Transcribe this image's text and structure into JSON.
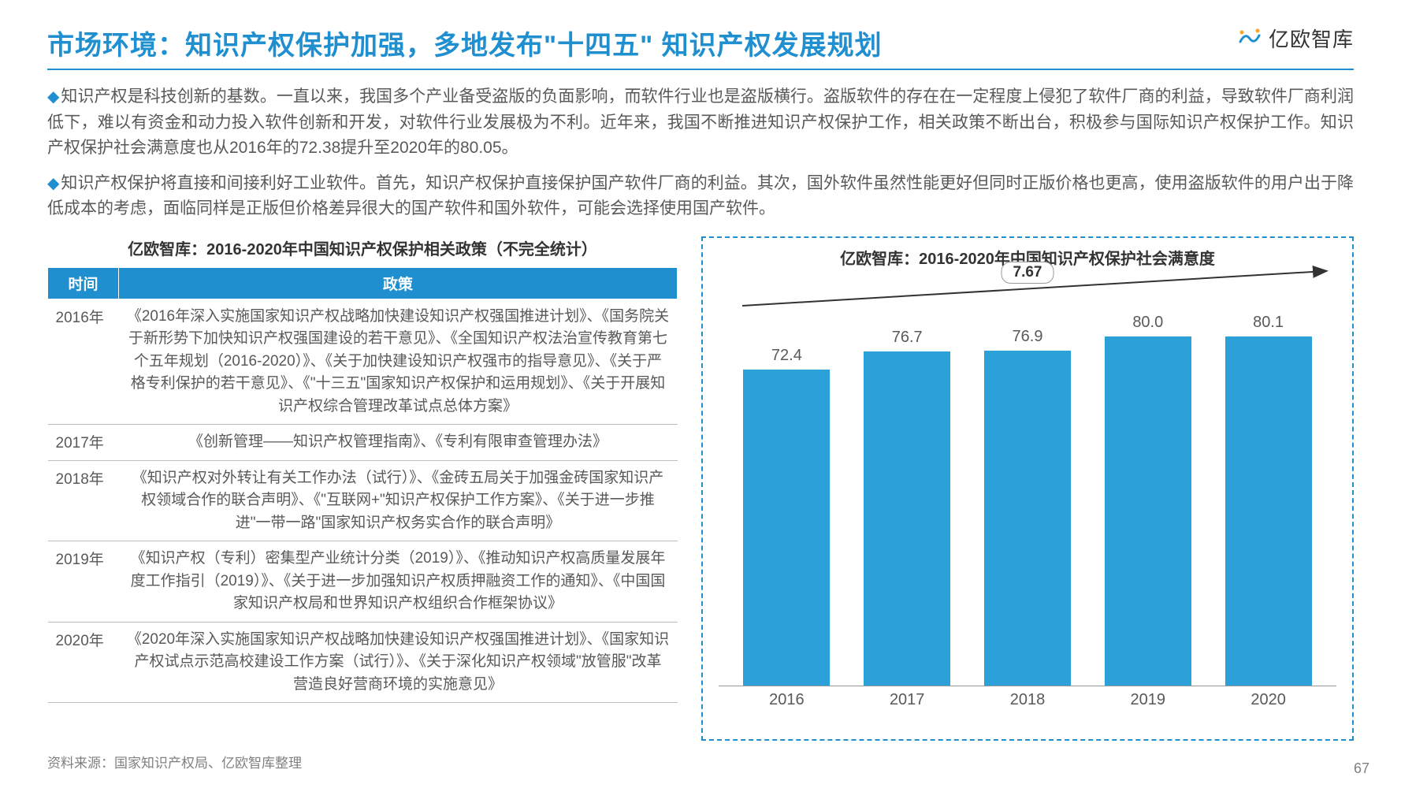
{
  "header": {
    "title": "市场环境：知识产权保护加强，多地发布\"十四五\" 知识产权发展规划",
    "logo_text": "亿欧智库"
  },
  "paragraphs": {
    "p1": "知识产权是科技创新的基数。一直以来，我国多个产业备受盗版的负面影响，而软件行业也是盗版横行。盗版软件的存在在一定程度上侵犯了软件厂商的利益，导致软件厂商利润低下，难以有资金和动力投入软件创新和开发，对软件行业发展极为不利。近年来，我国不断推进知识产权保护工作，相关政策不断出台，积极参与国际知识产权保护工作。知识产权保护社会满意度也从2016年的72.38提升至2020年的80.05。",
    "p2": "知识产权保护将直接和间接利好工业软件。首先，知识产权保护直接保护国产软件厂商的利益。其次，国外软件虽然性能更好但同时正版价格也更高，使用盗版软件的用户出于降低成本的考虑，面临同样是正版但价格差异很大的国产软件和国外软件，可能会选择使用国产软件。"
  },
  "table": {
    "title": "亿欧智库：2016-2020年中国知识产权保护相关政策（不完全统计）",
    "header_time": "时间",
    "header_policy": "政策",
    "rows": [
      {
        "year": "2016年",
        "policy": "《2016年深入实施国家知识产权战略加快建设知识产权强国推进计划》、《国务院关于新形势下加快知识产权强国建设的若干意见》、《全国知识产权法治宣传教育第七个五年规划（2016-2020）》、《关于加快建设知识产权强市的指导意见》、《关于严格专利保护的若干意见》、《\"十三五\"国家知识产权保护和运用规划》、《关于开展知识产权综合管理改革试点总体方案》"
      },
      {
        "year": "2017年",
        "policy": "《创新管理——知识产权管理指南》、《专利有限审查管理办法》"
      },
      {
        "year": "2018年",
        "policy": "《知识产权对外转让有关工作办法（试行）》、《金砖五局关于加强金砖国家知识产权领域合作的联合声明》、《\"互联网+\"知识产权保护工作方案》、《关于进一步推进\"一带一路\"国家知识产权务实合作的联合声明》"
      },
      {
        "year": "2019年",
        "policy": "《知识产权（专利）密集型产业统计分类（2019）》、《推动知识产权高质量发展年度工作指引（2019）》、《关于进一步加强知识产权质押融资工作的通知》、《中国国家知识产权局和世界知识产权组织合作框架协议》"
      },
      {
        "year": "2020年",
        "policy": "《2020年深入实施国家知识产权战略加快建设知识产权强国推进计划》、《国家知识产权试点示范高校建设工作方案（试行）》、《关于深化知识产权领域\"放管服\"改革 营造良好营商环境的实施意见》"
      }
    ]
  },
  "chart": {
    "title": "亿欧智库：2016-2020年中国知识产权保护社会满意度",
    "type": "bar",
    "bar_color": "#2ca0d9",
    "background_color": "#ffffff",
    "border_color": "#1f8fcf",
    "ylim_max": 85,
    "trend_value": "7.67",
    "categories": [
      "2016",
      "2017",
      "2018",
      "2019",
      "2020"
    ],
    "values": [
      72.4,
      76.7,
      76.9,
      80.0,
      80.1
    ],
    "label_fontsize": 20,
    "title_fontsize": 20
  },
  "footer": {
    "source": "资料来源：国家知识产权局、亿欧智库整理",
    "page_num": "67"
  }
}
